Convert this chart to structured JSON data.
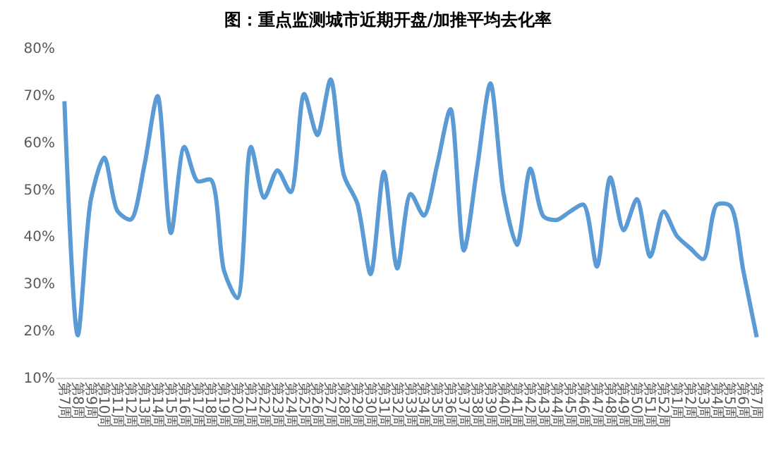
{
  "chart_data": {
    "type": "line",
    "title": "图：重点监测城市近期开盘/加推平均去化率",
    "categories": [
      "第7周",
      "第8周",
      "第9周",
      "第10周",
      "第11周",
      "第12周",
      "第13周",
      "第14周",
      "第15周",
      "第16周",
      "第17周",
      "第18周",
      "第19周",
      "第20周",
      "第21周",
      "第22周",
      "第23周",
      "第24周",
      "第25周",
      "第26周",
      "第27周",
      "第28周",
      "第29周",
      "第30周",
      "第31周",
      "第32周",
      "第33周",
      "第34周",
      "第35周",
      "第36周",
      "第37周",
      "第38周",
      "第39周",
      "第40周",
      "第41周",
      "第42周",
      "第43周",
      "第44周",
      "第45周",
      "第46周",
      "第47周",
      "第48周",
      "第49周",
      "第50周",
      "第51周",
      "第52周",
      "第1周",
      "第2周",
      "第3周",
      "第4周",
      "第5周",
      "第6周",
      "第7周"
    ],
    "series": [
      {
        "color": "#5b9bd5",
        "values": [
          68.7,
          19,
          48,
          56.7,
          45.3,
          43.6,
          55,
          69.8,
          40.7,
          59,
          51.7,
          52,
          32.6,
          26.9,
          59,
          48.2,
          54,
          49.4,
          70.2,
          61.5,
          73.3,
          52.9,
          47,
          32,
          53.7,
          33.2,
          49,
          44.4,
          55.2,
          67,
          37,
          54.6,
          72.5,
          48.8,
          38.2,
          54.4,
          44.2,
          43.5,
          45.3,
          46.7,
          33.6,
          52.5,
          41.3,
          47.9,
          35.7,
          45.3,
          40.1,
          37.5,
          35.2,
          46.7,
          46.5,
          32.6,
          18.6
        ]
      }
    ],
    "ylim": [
      10,
      80
    ],
    "yticks": [
      {
        "value": 10,
        "label": "10%"
      },
      {
        "value": 20,
        "label": "20%"
      },
      {
        "value": 30,
        "label": "30%"
      },
      {
        "value": 40,
        "label": "40%"
      },
      {
        "value": 50,
        "label": "50%"
      },
      {
        "value": 60,
        "label": "60%"
      },
      {
        "value": 70,
        "label": "70%"
      },
      {
        "value": 80,
        "label": "80%"
      }
    ],
    "grid": false,
    "marker": "none",
    "line_style": "solid"
  }
}
